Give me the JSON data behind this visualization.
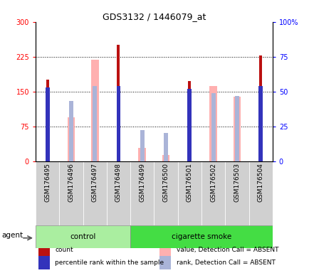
{
  "title": "GDS3132 / 1446079_at",
  "samples": [
    "GSM176495",
    "GSM176496",
    "GSM176497",
    "GSM176498",
    "GSM176499",
    "GSM176500",
    "GSM176501",
    "GSM176502",
    "GSM176503",
    "GSM176504"
  ],
  "groups": [
    "control",
    "control",
    "control",
    "control",
    "cigarette smoke",
    "cigarette smoke",
    "cigarette smoke",
    "cigarette smoke",
    "cigarette smoke",
    "cigarette smoke"
  ],
  "count_values": [
    175,
    null,
    null,
    250,
    null,
    null,
    172,
    null,
    null,
    228
  ],
  "percentile_rank_pct": [
    53,
    null,
    null,
    54,
    null,
    null,
    52,
    null,
    null,
    54
  ],
  "absent_value": [
    null,
    95,
    218,
    null,
    28,
    13,
    null,
    162,
    138,
    null
  ],
  "absent_rank_pct": [
    null,
    43,
    54,
    null,
    22,
    20,
    null,
    49,
    47,
    null
  ],
  "ylim_left": [
    0,
    300
  ],
  "ylim_right": [
    0,
    100
  ],
  "yticks_left": [
    0,
    75,
    150,
    225,
    300
  ],
  "yticks_right": [
    0,
    25,
    50,
    75,
    100
  ],
  "count_color": "#bb1111",
  "percentile_color": "#3333bb",
  "absent_value_color": "#ffb0b0",
  "absent_rank_color": "#aab4d8",
  "control_color": "#aaeea0",
  "smoke_color": "#44dd44",
  "legend_items": [
    {
      "color": "#bb1111",
      "label": "count"
    },
    {
      "color": "#3333bb",
      "label": "percentile rank within the sample"
    },
    {
      "color": "#ffb0b0",
      "label": "value, Detection Call = ABSENT"
    },
    {
      "color": "#aab4d8",
      "label": "rank, Detection Call = ABSENT"
    }
  ]
}
